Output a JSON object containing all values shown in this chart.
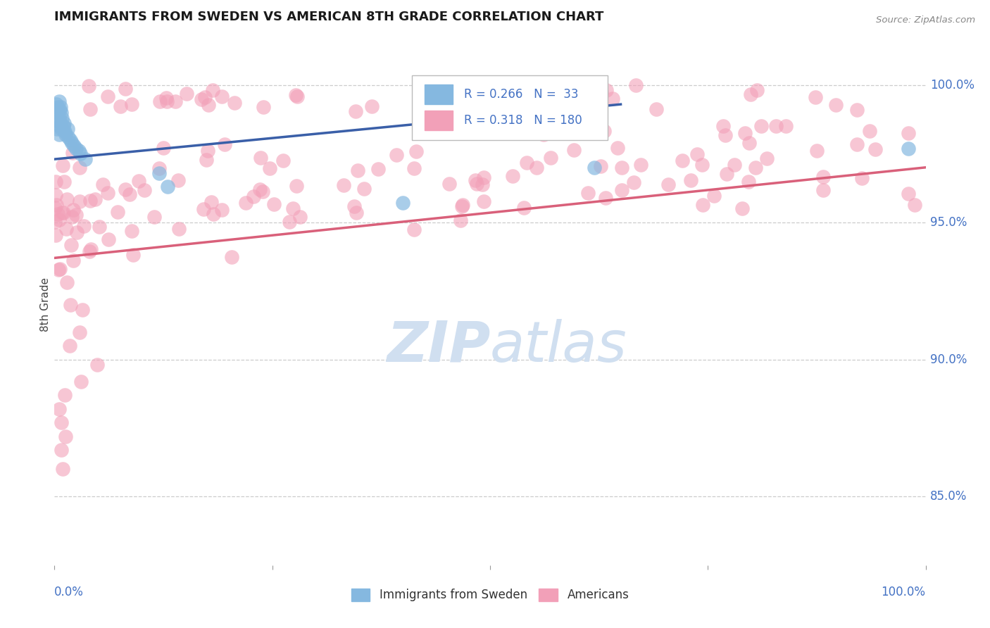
{
  "title": "IMMIGRANTS FROM SWEDEN VS AMERICAN 8TH GRADE CORRELATION CHART",
  "source_text": "Source: ZipAtlas.com",
  "ylabel": "8th Grade",
  "legend_blue_r": "R = 0.266",
  "legend_blue_n": "N =  33",
  "legend_pink_r": "R = 0.318",
  "legend_pink_n": "N = 180",
  "legend_label_blue": "Immigrants from Sweden",
  "legend_label_pink": "Americans",
  "blue_color": "#85b8e0",
  "pink_color": "#f2a0b8",
  "blue_line_color": "#3a5fa8",
  "pink_line_color": "#d9607a",
  "background_color": "#ffffff",
  "grid_color": "#cccccc",
  "axis_label_color": "#4472c4",
  "watermark_color": "#d0dff0",
  "ymin": 0.825,
  "ymax": 1.015,
  "xmin": 0.0,
  "xmax": 1.0,
  "yticks": [
    0.85,
    0.9,
    0.95,
    1.0
  ],
  "ytick_labels": [
    "85.0%",
    "90.0%",
    "95.0%",
    "100.0%"
  ]
}
